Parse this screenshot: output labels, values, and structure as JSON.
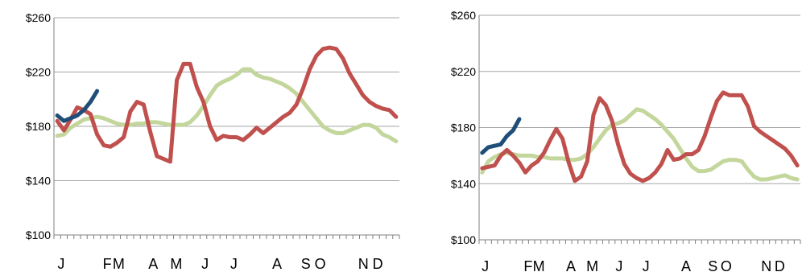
{
  "colors": {
    "green": "#c3d69b",
    "red": "#c0504d",
    "blue": "#1f4e79",
    "grid": "#a6a6a6",
    "axis": "#808080"
  },
  "chart_data": [
    {
      "type": "line",
      "title": "",
      "xlabel": "",
      "ylabel": "",
      "ylim": [
        100,
        260
      ],
      "yticks": [
        "$100",
        "$140",
        "$180",
        "$220",
        "$260"
      ],
      "ytick_values": [
        100,
        140,
        180,
        220,
        260
      ],
      "month_labels": [
        "J",
        "F",
        "M",
        "A",
        "M",
        "J",
        "J",
        "A",
        "S",
        "O",
        "N",
        "D"
      ],
      "grid": true,
      "legend": "none",
      "x_points_per_year": 52,
      "series": [
        {
          "color": "green",
          "values": [
            173,
            174,
            179,
            182,
            185,
            186,
            187,
            186,
            184,
            182,
            181,
            181,
            182,
            182,
            183,
            183,
            182,
            181,
            181,
            181,
            183,
            188,
            195,
            203,
            210,
            213,
            215,
            218,
            222,
            222,
            218,
            216,
            215,
            213,
            211,
            208,
            204,
            198,
            192,
            186,
            180,
            177,
            175,
            175,
            177,
            179,
            181,
            181,
            179,
            174,
            172,
            169
          ]
        },
        {
          "color": "red",
          "values": [
            184,
            177,
            185,
            194,
            192,
            189,
            174,
            166,
            165,
            168,
            172,
            191,
            198,
            196,
            176,
            158,
            156,
            154,
            214,
            226,
            226,
            209,
            198,
            180,
            170,
            173,
            172,
            172,
            170,
            174,
            179,
            175,
            179,
            183,
            187,
            190,
            196,
            208,
            222,
            232,
            237,
            238,
            237,
            230,
            219,
            211,
            203,
            198,
            195,
            193,
            192,
            187
          ]
        },
        {
          "color": "blue",
          "values": [
            188,
            184,
            186,
            188,
            192,
            198,
            206
          ]
        }
      ]
    },
    {
      "type": "line",
      "title": "",
      "xlabel": "",
      "ylabel": "",
      "ylim": [
        100,
        260
      ],
      "yticks": [
        "$100",
        "$140",
        "$180",
        "$220",
        "$260"
      ],
      "ytick_values": [
        100,
        140,
        180,
        220,
        260
      ],
      "month_labels": [
        "J",
        "F",
        "M",
        "A",
        "M",
        "J",
        "J",
        "A",
        "S",
        "O",
        "N",
        "D"
      ],
      "grid": true,
      "legend": "none",
      "x_points_per_year": 52,
      "series": [
        {
          "color": "green",
          "values": [
            148,
            156,
            159,
            161,
            162,
            161,
            160,
            160,
            160,
            159,
            159,
            158,
            158,
            158,
            157,
            157,
            158,
            161,
            166,
            172,
            178,
            182,
            183,
            185,
            189,
            193,
            192,
            189,
            186,
            182,
            177,
            172,
            165,
            158,
            152,
            149,
            149,
            150,
            153,
            156,
            157,
            157,
            156,
            150,
            145,
            143,
            143,
            144,
            145,
            146,
            144,
            143
          ]
        },
        {
          "color": "red",
          "values": [
            151,
            152,
            153,
            160,
            164,
            160,
            155,
            148,
            153,
            156,
            162,
            171,
            179,
            172,
            155,
            142,
            145,
            156,
            189,
            201,
            196,
            185,
            168,
            154,
            147,
            144,
            142,
            144,
            148,
            154,
            164,
            157,
            158,
            161,
            161,
            164,
            174,
            187,
            199,
            205,
            203,
            203,
            203,
            195,
            181,
            177,
            174,
            171,
            168,
            165,
            160,
            153
          ]
        },
        {
          "color": "blue",
          "values": [
            162,
            166,
            167,
            168,
            174,
            178,
            186
          ]
        }
      ]
    }
  ]
}
